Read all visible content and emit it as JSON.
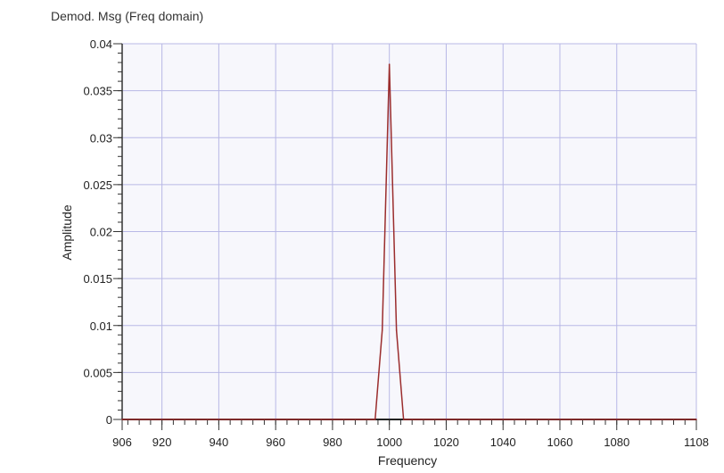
{
  "chart_data": {
    "type": "line",
    "title": "Demod. Msg (Freq domain)",
    "xlabel": "Frequency",
    "ylabel": "Amplitude",
    "xlim": [
      906,
      1108
    ],
    "ylim": [
      0,
      0.04
    ],
    "x_ticks": [
      906,
      920,
      940,
      960,
      980,
      1000,
      1020,
      1040,
      1060,
      1080,
      1108
    ],
    "y_ticks": [
      0,
      0.005,
      0.01,
      0.015,
      0.02,
      0.025,
      0.03,
      0.035,
      0.04
    ],
    "grid": true,
    "line_color": "#9b2d2d",
    "grid_color": "#b8b8e6",
    "series": [
      {
        "x": [
          906,
          995,
          997.5,
          1000,
          1002.5,
          1005,
          1108
        ],
        "values": [
          0,
          0,
          0.0095,
          0.0378,
          0.0095,
          0,
          0
        ]
      }
    ]
  }
}
